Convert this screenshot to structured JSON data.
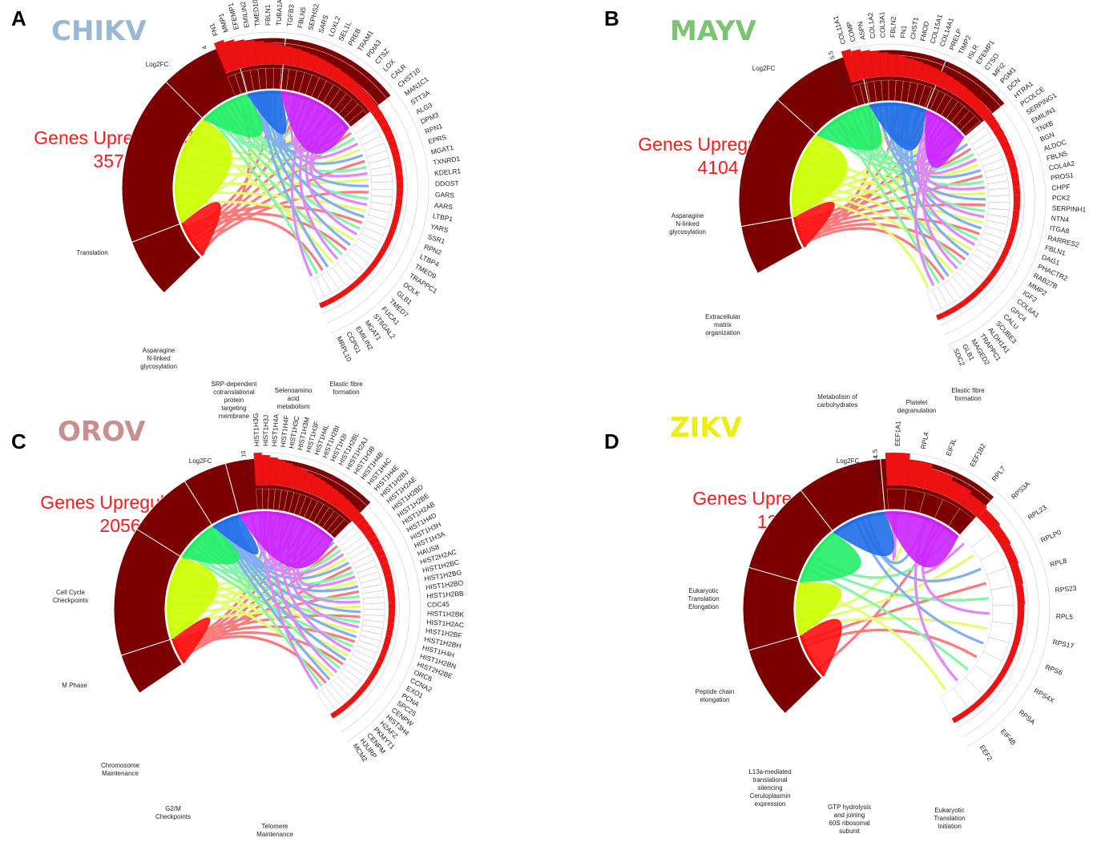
{
  "panels": [
    {
      "label": "A",
      "virus": "CHIKV",
      "virus_color": "#9bb8d2",
      "upregulated_label": "Genes Upregulated",
      "upregulated_count": "3578",
      "log2fc_label": "Log2FC",
      "log2fc_ticks": [
        "4",
        "3.5",
        "3",
        "2.5"
      ],
      "genes": [
        "FN1",
        "MMP1",
        "EFEMP1",
        "EMILIN2",
        "TMED10",
        "FBLN1",
        "TUBA1A",
        "TGFB3",
        "FBLN5",
        "SEPHS2",
        "SARS",
        "LOXL2",
        "SEL1L",
        "PREB",
        "TRAM1",
        "PDIA3",
        "CTSZ",
        "LOX",
        "CALR",
        "CHST10",
        "MAN1C1",
        "STT3A",
        "ALG3",
        "DPM3",
        "RPN1",
        "EPRS",
        "MGAT1",
        "TXNRD1",
        "KDELR1",
        "DDOST",
        "GARS",
        "AARS",
        "LTBP1",
        "YARS",
        "SSR1",
        "RPN2",
        "LTBP4",
        "TMED9",
        "TRAPPC1",
        "DOLK",
        "GLB1",
        "TMED7",
        "FUCA1",
        "ST6GAL2",
        "MGAT1",
        "EMILIN2",
        "CCPG1",
        "MRPL10"
      ],
      "pathways": [
        {
          "name": "Translation",
          "color": "#ff1010"
        },
        {
          "name": "Asparagine N-linked glycosylation",
          "color": "#ccff00"
        },
        {
          "name": "SRP-dependent cotranslational protein targeting membrane",
          "color": "#22ee66"
        },
        {
          "name": "Selenoamino acid metabolism",
          "color": "#1f6ee8"
        },
        {
          "name": "Elastic fibre formation",
          "color": "#cc22ff"
        }
      ]
    },
    {
      "label": "B",
      "virus": "MAYV",
      "virus_color": "#7cc473",
      "upregulated_label": "Genes Upregulated",
      "upregulated_count": "4104",
      "log2fc_label": "Log2FC",
      "log2fc_ticks": [
        "5.5",
        "5",
        "4.5",
        "4",
        "3.5"
      ],
      "genes": [
        "COL11A1",
        "COMP",
        "ASPN",
        "COL1A2",
        "COL3A1",
        "FBLN2",
        "FN1",
        "CHST1",
        "FMOD",
        "COL15A1",
        "COL14A1",
        "PRELP",
        "TIMP2",
        "ISLR",
        "EFEMP1",
        "CTSO",
        "MFI2",
        "PGM1",
        "DCN",
        "HTRA1",
        "PCOLCE",
        "SERPING1",
        "EMILIN1",
        "TNXB",
        "BGN",
        "ALDOC",
        "FBLN5",
        "COL4A2",
        "PROS1",
        "CHPF",
        "PCK2",
        "SERPINH1",
        "NTN4",
        "ITGA8",
        "RARRES2",
        "FBLN1",
        "DAG1",
        "PHACTR2",
        "RAB27B",
        "MMP2",
        "IGF2",
        "COL6A1",
        "GPC4",
        "CALU",
        "SCUBE3",
        "ALDH1A1",
        "TRAPPC1",
        "MAGED2",
        "GLB1",
        "SDC2"
      ],
      "pathways": [
        {
          "name": "Asparagine N-linked glycosylation",
          "color": "#ff1010"
        },
        {
          "name": "Extracellular matrix organization",
          "color": "#ccff00"
        },
        {
          "name": "Metabolism of carbohydrates",
          "color": "#22ee66"
        },
        {
          "name": "Platelet degranulation",
          "color": "#1f6ee8"
        },
        {
          "name": "Elastic fibre formation",
          "color": "#cc22ff"
        }
      ]
    },
    {
      "label": "C",
      "virus": "OROV",
      "virus_color": "#c98e8e",
      "upregulated_label": "Genes Upregulated",
      "upregulated_count": "2056",
      "log2fc_label": "Log2FC",
      "log2fc_ticks": [
        "10",
        "8",
        "6",
        "4",
        "2"
      ],
      "genes": [
        "HIST1H3G",
        "HIST1H3J",
        "HIST1H4A",
        "HIST1H4F",
        "HIST1H3C",
        "HIST1H3M",
        "HIST1H3F",
        "HIST1H4L",
        "HIST1H2BI",
        "HIST1H3I",
        "HIST1H2BL",
        "HIST1H2AJ",
        "HIST1H3B",
        "HIST1H4B",
        "HIST1H4C",
        "HIST1H4E",
        "HIST1H2BJ",
        "HIST1H2AE",
        "HIST1H2BD",
        "HIST1H2BE",
        "HIST1H2AB",
        "HIST1H4D",
        "HIST1H3H",
        "HIST1H3A",
        "HAUS8",
        "HIST2H2AC",
        "HIST1H2BC",
        "HIST1H2BG",
        "HIST1H2BO",
        "HIST1H2BB",
        "CDC45",
        "HIST1H2BK",
        "HIST1H2AC",
        "HIST1H2BF",
        "HIST1H2BH",
        "HIST1H4H",
        "HIST1H2BN",
        "HIST2H2BE",
        "ORC6",
        "CCNA2",
        "EXO1",
        "PCNA",
        "SPC25",
        "CENPW",
        "HIST3H4",
        "H2AFZ",
        "PKMYT1",
        "CENPM",
        "HJURP",
        "MCM2"
      ],
      "pathways": [
        {
          "name": "Cell Cycle Checkpoints",
          "color": "#ff1010"
        },
        {
          "name": "M Phase",
          "color": "#ccff00"
        },
        {
          "name": "Chromosome Maintenance",
          "color": "#22ee66"
        },
        {
          "name": "G2/M Checkpoints",
          "color": "#1f6ee8"
        },
        {
          "name": "Telomere Maintenance",
          "color": "#cc22ff"
        }
      ]
    },
    {
      "label": "D",
      "virus": "ZIKV",
      "virus_color": "#eded1a",
      "upregulated_label": "Genes Upregulated",
      "upregulated_count": "133",
      "log2fc_label": "Log2FC",
      "log2fc_ticks": [
        "1.5",
        "1.4",
        "1.3",
        "1.2",
        "1.1",
        "1"
      ],
      "genes": [
        "EEF1A1",
        "RPL4",
        "EIF3L",
        "EEF1B2",
        "RPL7",
        "RPS3A",
        "RPL23",
        "RPLP0",
        "RPL8",
        "RPS23",
        "RPL5",
        "RPS17",
        "RPS6",
        "RPS4X",
        "RPSA",
        "EIF4B",
        "EEF2"
      ],
      "pathways": [
        {
          "name": "Eukaryotic Translation Elongation",
          "color": "#ff1010"
        },
        {
          "name": "Peptide chain elongation",
          "color": "#ccff00"
        },
        {
          "name": "L13a-mediated translational silencing Ceruloplasmin expression",
          "color": "#22ee66"
        },
        {
          "name": "GTP hydrolysis and joining 60S ribosomal subunit",
          "color": "#1f6ee8"
        },
        {
          "name": "Eukaryotic Translation Initiation",
          "color": "#cc22ff"
        }
      ]
    }
  ]
}
